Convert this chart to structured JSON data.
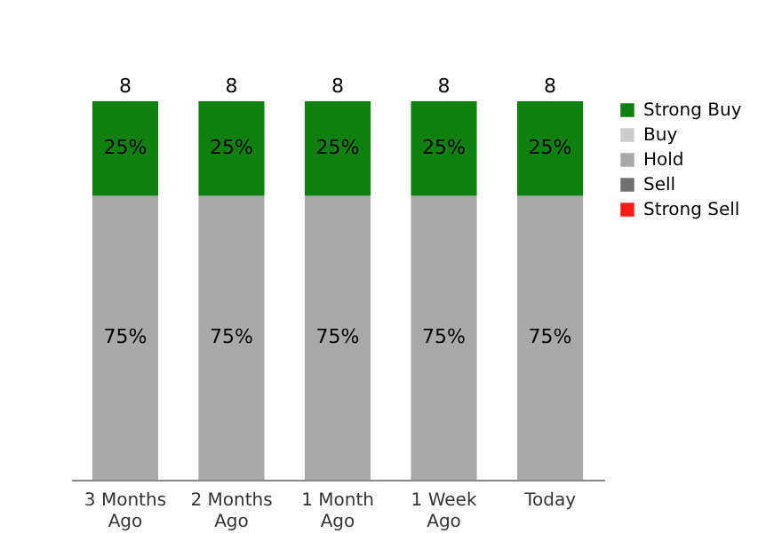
{
  "chart_data": {
    "type": "bar",
    "stacked": true,
    "categories": [
      "3 Months Ago",
      "2 Months Ago",
      "1 Month Ago",
      "1 Week Ago",
      "Today"
    ],
    "series": [
      {
        "name": "Strong Sell",
        "color": "#ff1a1a",
        "values": [
          null,
          null,
          null,
          null,
          null
        ]
      },
      {
        "name": "Sell",
        "color": "#707070",
        "values": [
          null,
          null,
          null,
          null,
          null
        ]
      },
      {
        "name": "Hold",
        "color": "#a9a9a9",
        "values": [
          75,
          75,
          75,
          75,
          75
        ],
        "value_labels": [
          "75%",
          "75%",
          "75%",
          "75%",
          "75%"
        ]
      },
      {
        "name": "Buy",
        "color": "#cccccc",
        "values": [
          null,
          null,
          null,
          null,
          null
        ]
      },
      {
        "name": "Strong Buy",
        "color": "#108010",
        "values": [
          25,
          25,
          25,
          25,
          25
        ],
        "value_labels": [
          "25%",
          "25%",
          "25%",
          "25%",
          "25%"
        ]
      }
    ],
    "annotations": [
      {
        "text": "8",
        "x": "3 Months Ago",
        "y": 100
      },
      {
        "text": "8",
        "x": "2 Months Ago",
        "y": 100
      },
      {
        "text": "8",
        "x": "1 Month Ago",
        "y": 100
      },
      {
        "text": "8",
        "x": "1 Week Ago",
        "y": 100
      },
      {
        "text": "8",
        "x": "Today",
        "y": 100
      }
    ],
    "legend": "right",
    "grid": false
  }
}
